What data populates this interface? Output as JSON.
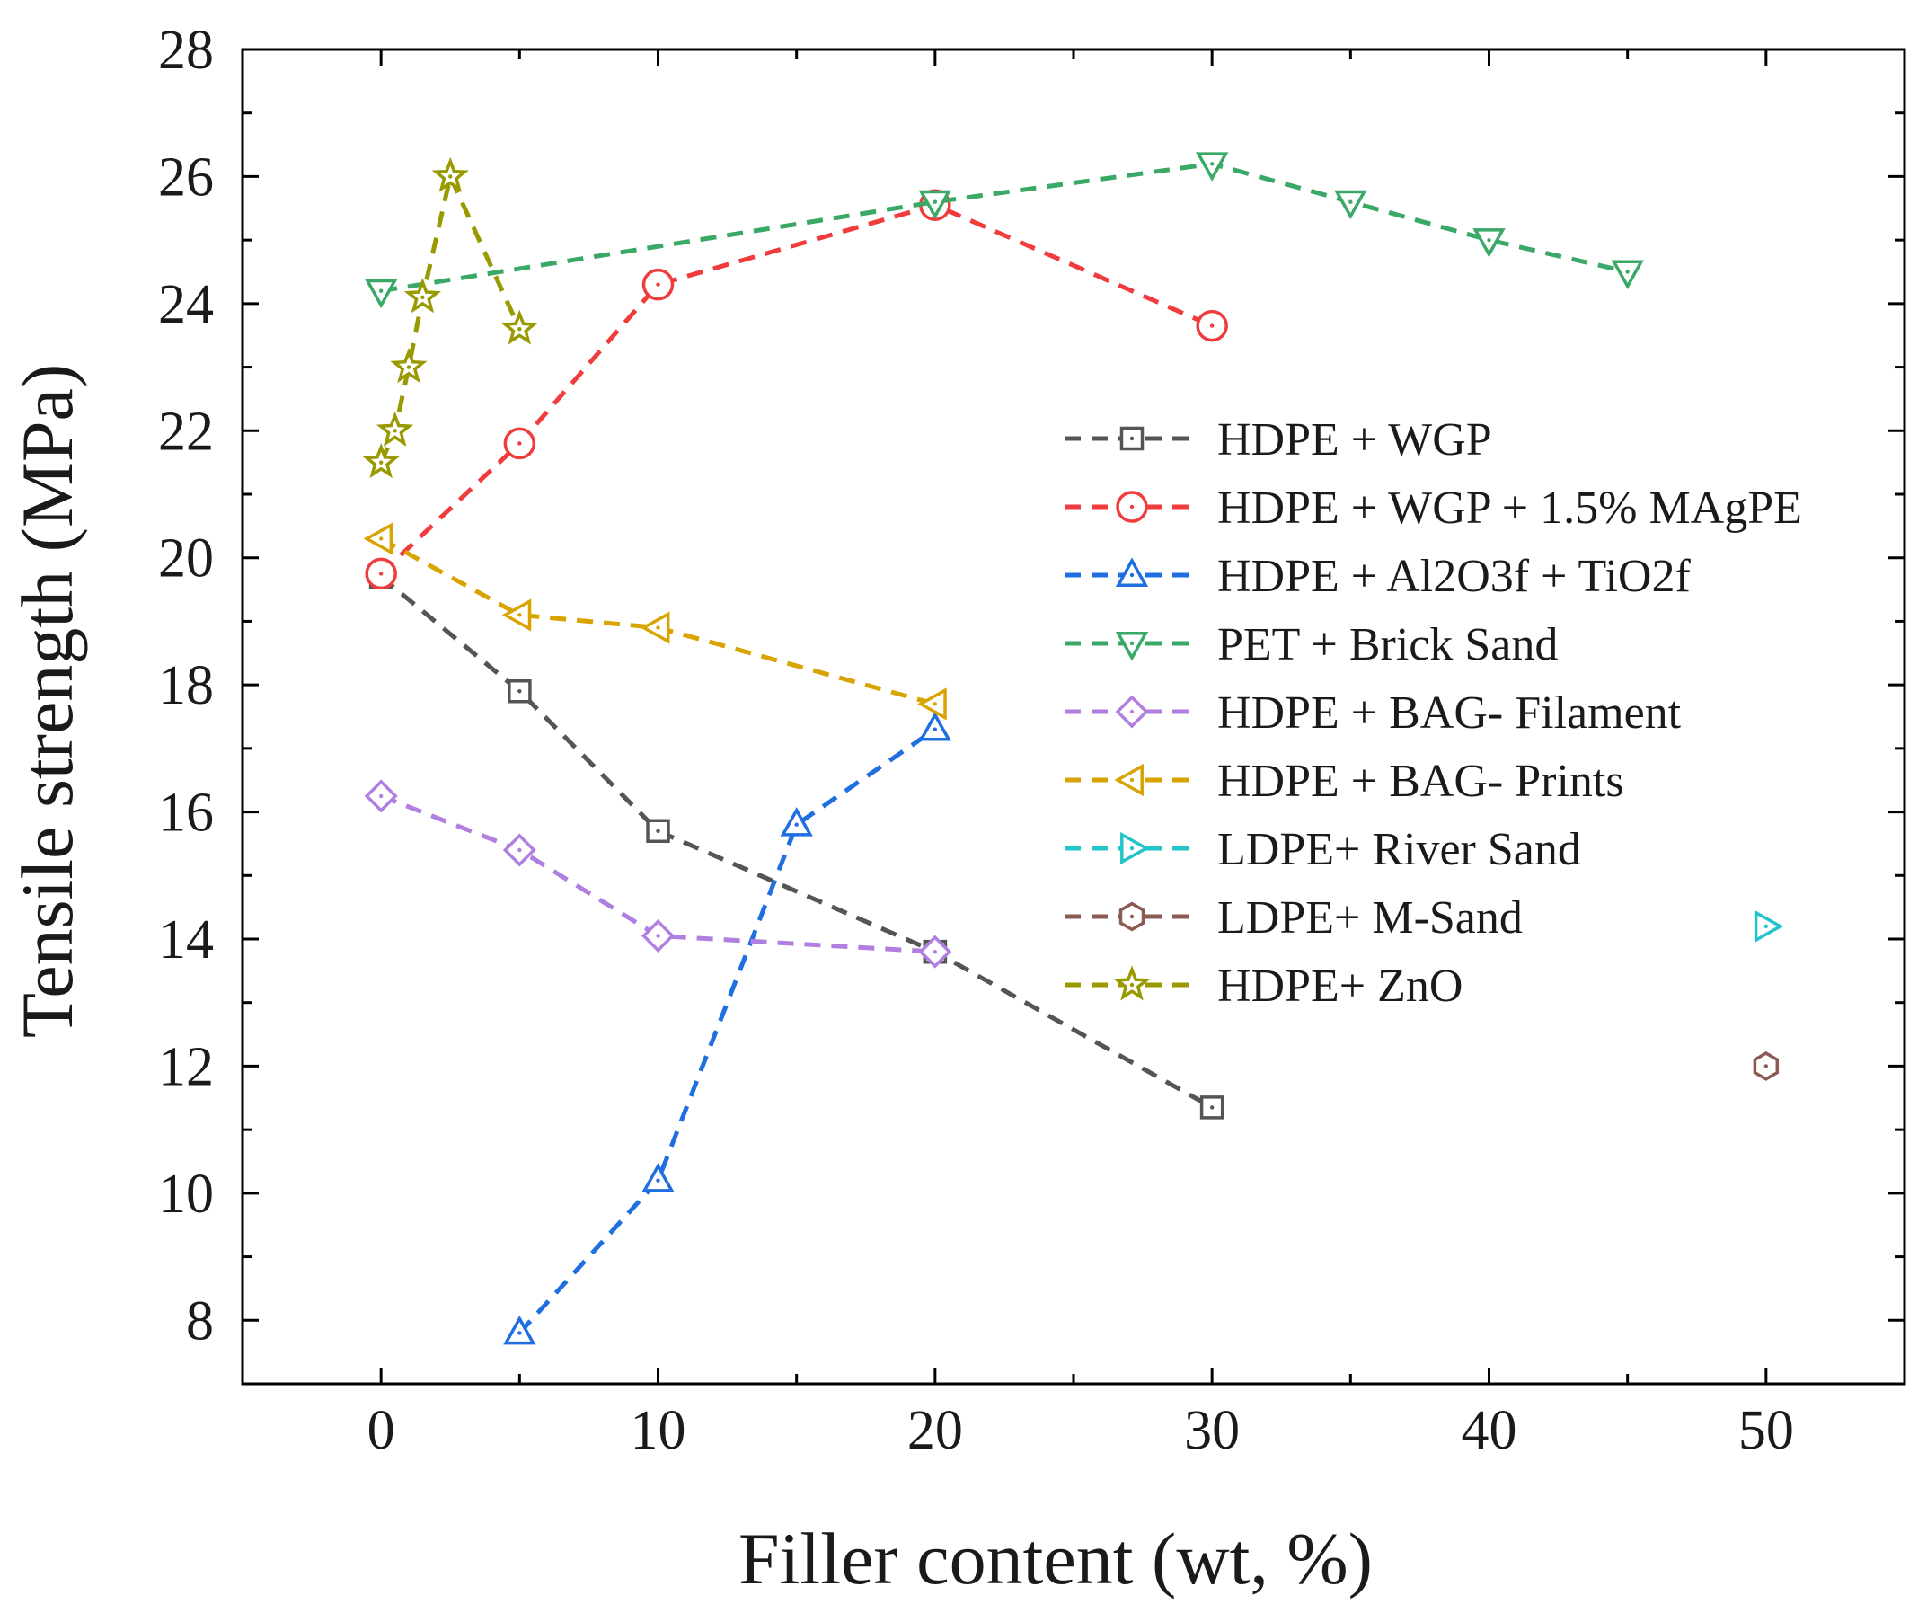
{
  "chart_data": {
    "type": "line",
    "title": "",
    "xlabel": "Filler content (wt, %)",
    "ylabel": "Tensile strength (MPa)",
    "xlim": [
      -5,
      55
    ],
    "ylim": [
      7,
      28
    ],
    "xticks": [
      0,
      10,
      20,
      30,
      40,
      50
    ],
    "yticks": [
      8,
      10,
      12,
      14,
      16,
      18,
      20,
      22,
      24,
      26,
      28
    ],
    "legend_position": "center-right",
    "series": [
      {
        "name": "HDPE + WGP",
        "color": "#555555",
        "marker": "square",
        "x": [
          0,
          5,
          10,
          20,
          30
        ],
        "y": [
          19.7,
          17.9,
          15.7,
          13.8,
          11.35
        ]
      },
      {
        "name": "HDPE + WGP + 1.5% MAgPE",
        "color": "#f03c3c",
        "marker": "circle",
        "x": [
          0,
          5,
          10,
          20,
          30
        ],
        "y": [
          19.75,
          21.8,
          24.3,
          25.55,
          23.65
        ]
      },
      {
        "name": "HDPE + Al2O3f +  TiO2f",
        "color": "#1f6fe0",
        "marker": "triangle-up",
        "x": [
          5,
          10,
          15,
          20
        ],
        "y": [
          7.8,
          10.2,
          15.8,
          17.3
        ]
      },
      {
        "name": "PET + Brick Sand",
        "color": "#3aa866",
        "marker": "triangle-down",
        "x": [
          0,
          20,
          30,
          35,
          40,
          45
        ],
        "y": [
          24.2,
          25.6,
          26.2,
          25.6,
          25.0,
          24.5
        ]
      },
      {
        "name": "HDPE + BAG- Filament",
        "color": "#b07fe0",
        "marker": "diamond",
        "x": [
          0,
          5,
          10,
          20
        ],
        "y": [
          16.25,
          15.4,
          14.05,
          13.8
        ]
      },
      {
        "name": "HDPE + BAG- Prints",
        "color": "#d9a300",
        "marker": "triangle-left",
        "x": [
          0,
          5,
          10,
          20
        ],
        "y": [
          20.3,
          19.1,
          18.9,
          17.7
        ]
      },
      {
        "name": "LDPE+ River Sand",
        "color": "#22c3c9",
        "marker": "triangle-right",
        "x": [
          50
        ],
        "y": [
          14.2
        ]
      },
      {
        "name": "LDPE+ M-Sand",
        "color": "#8b5a55",
        "marker": "hexagon",
        "x": [
          50
        ],
        "y": [
          12.0
        ]
      },
      {
        "name": "HDPE+ ZnO",
        "color": "#999900",
        "marker": "star",
        "x": [
          0,
          0.5,
          1,
          1.5,
          2.5,
          5
        ],
        "y": [
          21.5,
          22.0,
          23.0,
          24.1,
          26.0,
          23.6
        ]
      }
    ]
  }
}
